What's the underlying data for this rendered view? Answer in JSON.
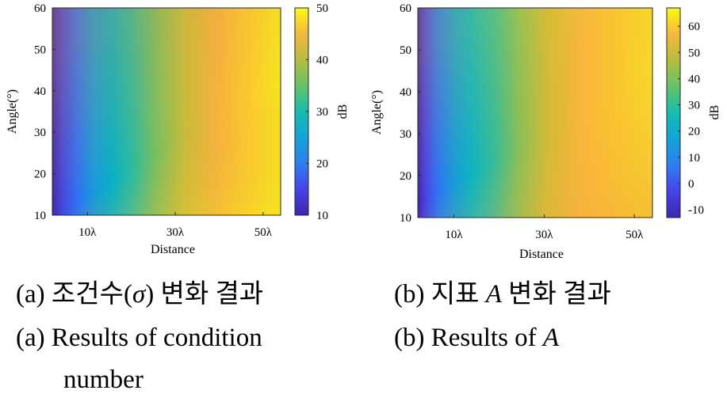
{
  "chart_data": [
    {
      "type": "heatmap",
      "panel": "a",
      "xlabel": "Distance",
      "ylabel": "Angle(°)",
      "colorbar_label": "dB",
      "x_ticks": [
        "10λ",
        "30λ",
        "50λ"
      ],
      "x_tick_values": [
        10,
        30,
        50
      ],
      "xlim": [
        2,
        54
      ],
      "y_ticks": [
        10,
        20,
        30,
        40,
        50,
        60
      ],
      "ylim": [
        10,
        60
      ],
      "colorbar_ticks": [
        10,
        20,
        30,
        40,
        50
      ],
      "clim": [
        10,
        50
      ],
      "colormap": "parula",
      "model": "v ≈ 10 + 40·( √((x−2)/52) · (1 − 0.12·(y−10)/50) )",
      "samples": [
        {
          "x": 2,
          "y": 10,
          "value": 10
        },
        {
          "x": 10,
          "y": 10,
          "value": 26
        },
        {
          "x": 30,
          "y": 10,
          "value": 39
        },
        {
          "x": 50,
          "y": 10,
          "value": 48
        },
        {
          "x": 10,
          "y": 60,
          "value": 24
        },
        {
          "x": 30,
          "y": 60,
          "value": 35
        },
        {
          "x": 50,
          "y": 60,
          "value": 43
        }
      ]
    },
    {
      "type": "heatmap",
      "panel": "b",
      "xlabel": "Distance",
      "ylabel": "Angle(°)",
      "colorbar_label": "dB",
      "x_ticks": [
        "10λ",
        "30λ",
        "50λ"
      ],
      "x_tick_values": [
        10,
        30,
        50
      ],
      "xlim": [
        2,
        54
      ],
      "y_ticks": [
        10,
        20,
        30,
        40,
        50,
        60
      ],
      "ylim": [
        10,
        60
      ],
      "colorbar_ticks": [
        -10,
        0,
        10,
        20,
        30,
        40,
        50,
        60
      ],
      "clim": [
        -13,
        67
      ],
      "colormap": "parula",
      "samples": [
        {
          "x": 2,
          "y": 10,
          "value": -13
        },
        {
          "x": 10,
          "y": 10,
          "value": 20
        },
        {
          "x": 30,
          "y": 10,
          "value": 50
        },
        {
          "x": 50,
          "y": 10,
          "value": 62
        },
        {
          "x": 10,
          "y": 60,
          "value": 18
        },
        {
          "x": 30,
          "y": 60,
          "value": 44
        },
        {
          "x": 50,
          "y": 60,
          "value": 55
        }
      ]
    }
  ],
  "captions": {
    "a_korean_prefix": "(a) 조건수(",
    "a_korean_sigma": "σ",
    "a_korean_suffix": ") 변화 결과",
    "b_korean_prefix": "(b) 지표 ",
    "b_korean_var": "A",
    "b_korean_suffix": " 변화 결과",
    "a_english_line1": "(a) Results of condition",
    "a_english_line2": "number",
    "b_english_prefix": "(b) Results of ",
    "b_english_var": "A"
  }
}
